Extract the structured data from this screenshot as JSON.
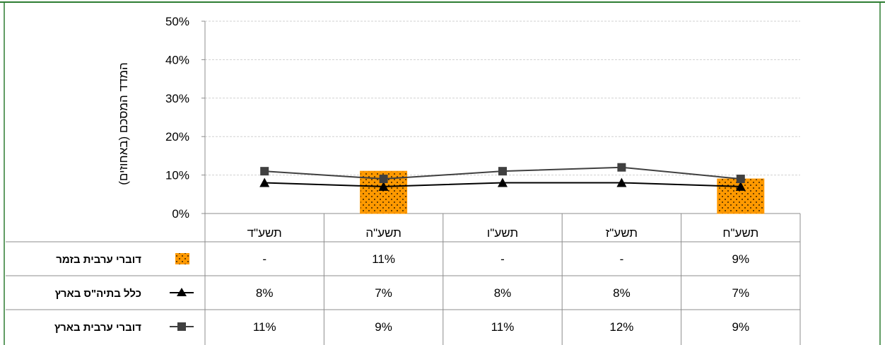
{
  "chart_data": {
    "type": "bar",
    "categories": [
      "תשע\"ד",
      "תשע\"ה",
      "תשע\"ו",
      "תשע\"ז",
      "תשע\"ח"
    ],
    "ylabel": "המדד המסכם (באחוזים)",
    "ylim": [
      0,
      50
    ],
    "yticks": [
      "0%",
      "10%",
      "20%",
      "30%",
      "40%",
      "50%"
    ],
    "grid": true,
    "legend": "table-left",
    "series": [
      {
        "name": "דוברי ערבית בזמר",
        "kind": "bar",
        "marker": "dotted-box",
        "color": "#ff9900",
        "values": [
          null,
          11,
          null,
          null,
          9
        ],
        "labels": [
          "-",
          "11%",
          "-",
          "-",
          "9%"
        ]
      },
      {
        "name": "כלל בתיה\"ס בארץ",
        "kind": "line",
        "marker": "triangle",
        "color": "#000000",
        "values": [
          8,
          7,
          8,
          8,
          7
        ],
        "labels": [
          "8%",
          "7%",
          "8%",
          "8%",
          "7%"
        ]
      },
      {
        "name": "דוברי ערבית בארץ",
        "kind": "line",
        "marker": "square",
        "color": "#404040",
        "values": [
          11,
          9,
          11,
          12,
          9
        ],
        "labels": [
          "11%",
          "9%",
          "11%",
          "12%",
          "9%"
        ]
      }
    ]
  },
  "colors": {
    "frame": "#2e7d32",
    "grid": "#d0d0d0",
    "axis": "#8c8c8c"
  }
}
